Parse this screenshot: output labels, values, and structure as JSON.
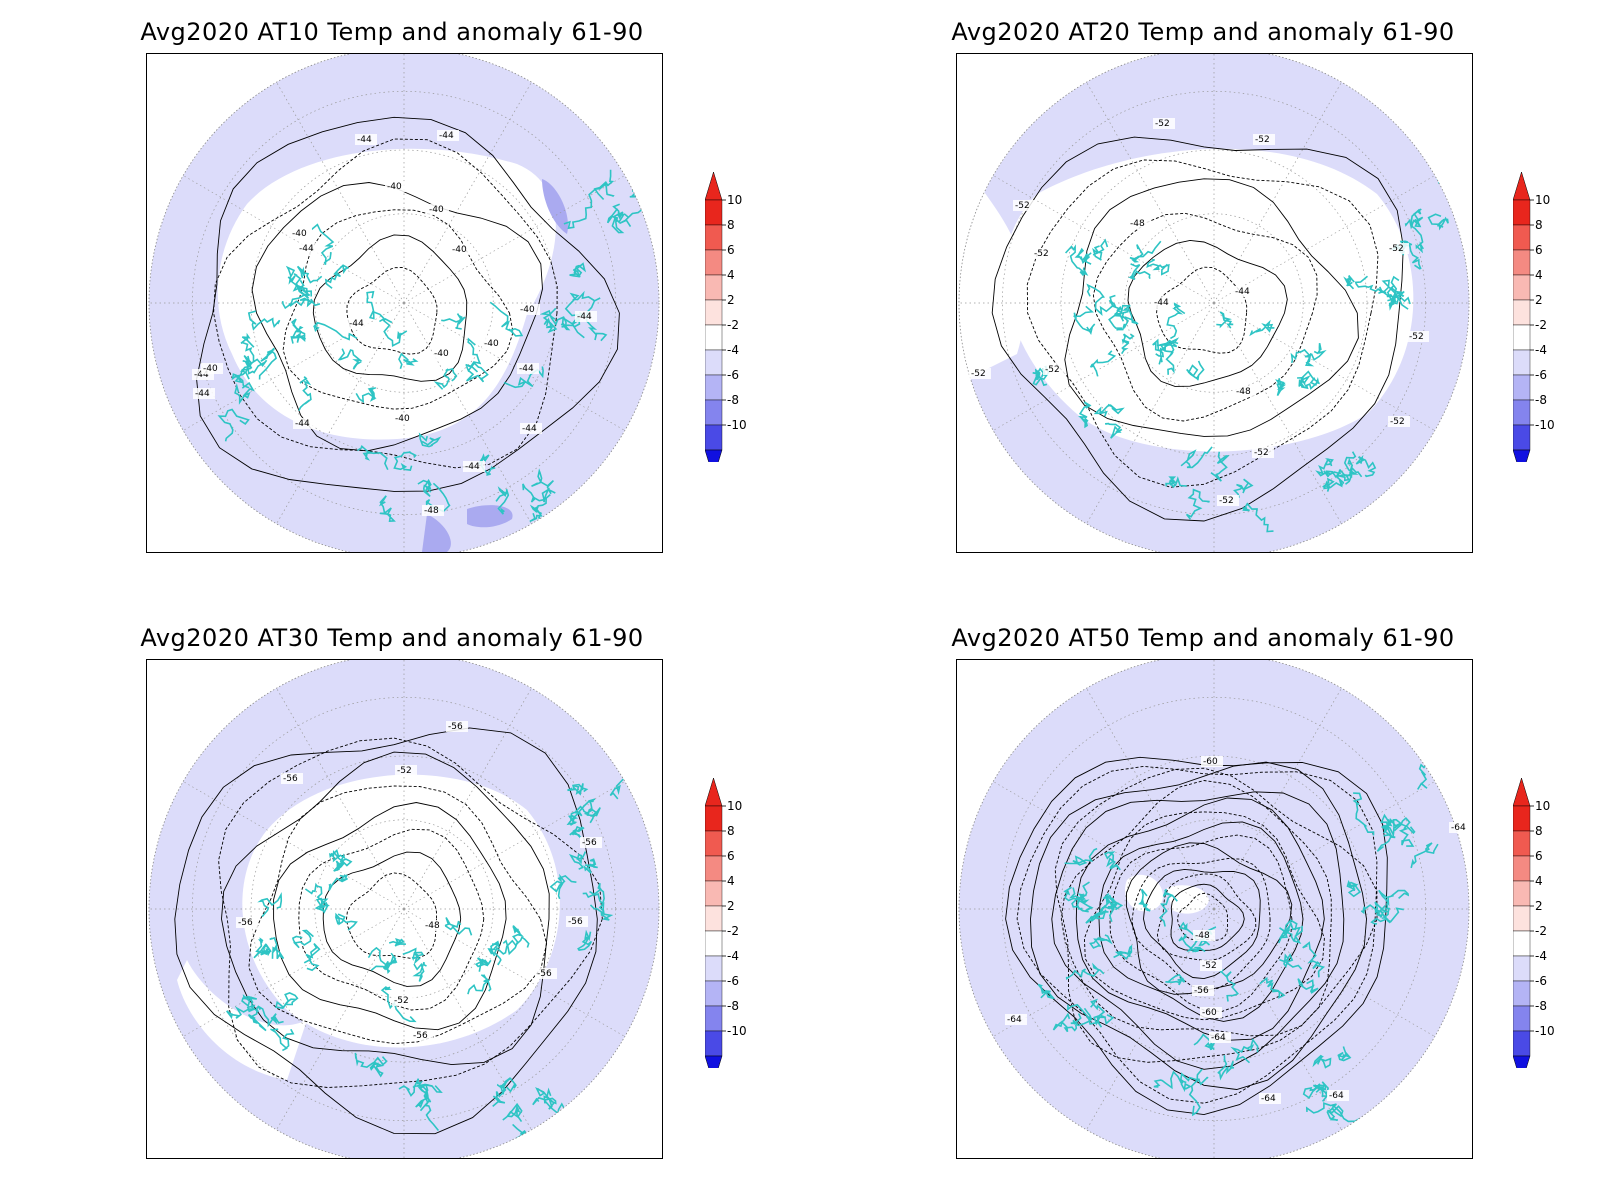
{
  "panels": [
    {
      "title": "Avg2020 AT10 Temp and anomaly 61-90",
      "contour_labels": [
        "-44",
        "-44",
        "-40",
        "-40",
        "-40",
        "-44",
        "-40",
        "-40",
        "-44",
        "-44",
        "-44",
        "-40",
        "-40",
        "-40",
        "-40",
        "-44",
        "-44",
        "-44",
        "-44",
        "-48",
        "-44"
      ]
    },
    {
      "title": "Avg2020 AT20 Temp and anomaly 61-90",
      "contour_labels": [
        "-52",
        "-52",
        "-52",
        "-48",
        "-52",
        "-52",
        "-44",
        "-44",
        "-52",
        "-52",
        "-52",
        "-48",
        "-52",
        "-52",
        "-52"
      ]
    },
    {
      "title": "Avg2020 AT30 Temp and anomaly 61-90",
      "contour_labels": [
        "-56",
        "-56",
        "-52",
        "-56",
        "-56",
        "-48",
        "-56",
        "-56",
        "-52",
        "-56"
      ]
    },
    {
      "title": "Avg2020 AT50 Temp and anomaly 61-90",
      "contour_labels": [
        "-60",
        "-64",
        "-48",
        "-52",
        "-56",
        "-60",
        "-64",
        "-64",
        "-64",
        "-64"
      ]
    }
  ],
  "colorbar": {
    "labels": [
      "10",
      "8",
      "6",
      "4",
      "2",
      "-2",
      "-4",
      "-6",
      "-8",
      "-10"
    ],
    "colors": [
      "#e8261d",
      "#f05a50",
      "#f48a82",
      "#f9b9b3",
      "#fde2de",
      "#ffffff",
      "#dcdcfa",
      "#b4b4f5",
      "#8484ee",
      "#4a4ae6",
      "#1010e0"
    ]
  },
  "colors": {
    "coastline": "#2ec4c4",
    "anomaly_fill": "#dcdcfa",
    "anomaly_fill_strong": "#aaaaf0",
    "contour": "#000000",
    "grid": "#999999"
  }
}
